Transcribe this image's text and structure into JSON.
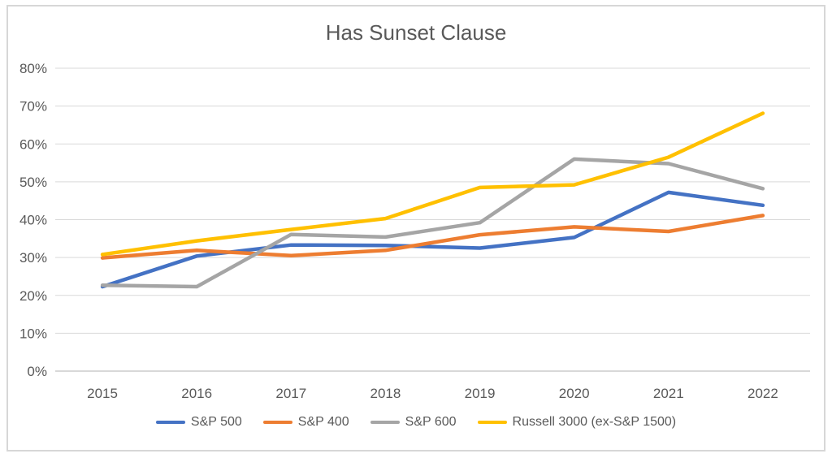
{
  "chart_data": {
    "type": "line",
    "title": "Has Sunset Clause",
    "xlabel": "",
    "ylabel": "",
    "categories": [
      "2015",
      "2016",
      "2017",
      "2018",
      "2019",
      "2020",
      "2021",
      "2022"
    ],
    "series": [
      {
        "name": "S&P 500",
        "color": "#4472C4",
        "values": [
          22.3,
          30.4,
          33.3,
          33.2,
          32.5,
          35.3,
          47.2,
          43.8
        ]
      },
      {
        "name": "S&P 400",
        "color": "#ED7D31",
        "values": [
          29.9,
          31.9,
          30.5,
          31.9,
          36.0,
          38.1,
          36.9,
          41.1
        ]
      },
      {
        "name": "S&P 600",
        "color": "#A5A5A5",
        "values": [
          22.7,
          22.3,
          36.1,
          35.4,
          39.2,
          56.0,
          54.8,
          48.2
        ]
      },
      {
        "name": "Russell 3000 (ex-S&P 1500)",
        "color": "#FFC000",
        "values": [
          30.8,
          34.4,
          37.4,
          40.3,
          48.5,
          49.2,
          56.5,
          68.1
        ]
      }
    ],
    "ylim": [
      0,
      80
    ],
    "ytick_step": 10,
    "ytick_labels": [
      "0%",
      "10%",
      "20%",
      "30%",
      "40%",
      "50%",
      "60%",
      "70%",
      "80%"
    ],
    "grid": true,
    "legend_position": "bottom",
    "text_color": "#595959",
    "gridline_color": "#D9D9D9",
    "border_color": "#D7D7D7"
  }
}
